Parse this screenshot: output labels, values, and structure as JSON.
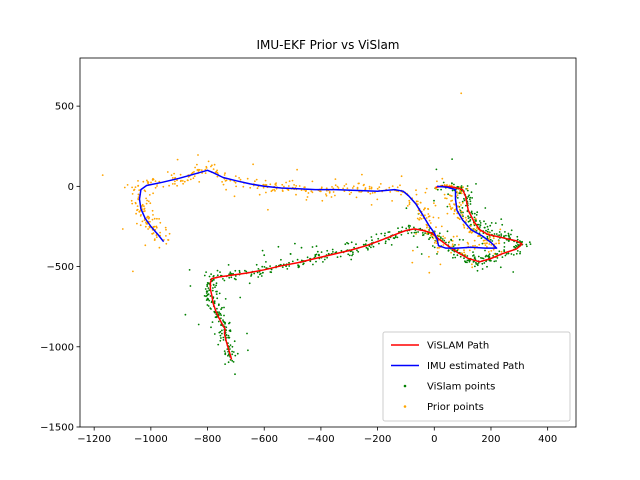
{
  "chart_data": {
    "type": "scatter",
    "title": "IMU-EKF Prior vs ViSlam",
    "xlabel": "",
    "ylabel": "",
    "xlim": [
      -1250,
      500
    ],
    "ylim": [
      -1500,
      800
    ],
    "xticks": [
      -1200,
      -1000,
      -800,
      -600,
      -400,
      -200,
      0,
      200,
      400
    ],
    "yticks": [
      -1500,
      -1000,
      -500,
      0,
      500
    ],
    "grid": false,
    "legend": "bottom-right",
    "series": [
      {
        "name": "ViSLAM Path",
        "kind": "line",
        "color": "#ff0000",
        "points": [
          [
            -715,
            -1080
          ],
          [
            -725,
            -1020
          ],
          [
            -735,
            -960
          ],
          [
            -740,
            -920
          ],
          [
            -738,
            -890
          ],
          [
            -748,
            -860
          ],
          [
            -760,
            -820
          ],
          [
            -770,
            -780
          ],
          [
            -780,
            -730
          ],
          [
            -785,
            -680
          ],
          [
            -790,
            -640
          ],
          [
            -790,
            -600
          ],
          [
            -785,
            -575
          ],
          [
            -760,
            -565
          ],
          [
            -720,
            -555
          ],
          [
            -660,
            -540
          ],
          [
            -600,
            -520
          ],
          [
            -540,
            -495
          ],
          [
            -480,
            -475
          ],
          [
            -420,
            -450
          ],
          [
            -360,
            -425
          ],
          [
            -300,
            -400
          ],
          [
            -240,
            -370
          ],
          [
            -180,
            -330
          ],
          [
            -130,
            -295
          ],
          [
            -100,
            -275
          ],
          [
            -70,
            -265
          ],
          [
            -40,
            -275
          ],
          [
            -10,
            -290
          ],
          [
            10,
            -320
          ],
          [
            40,
            -360
          ],
          [
            80,
            -410
          ],
          [
            120,
            -450
          ],
          [
            160,
            -470
          ],
          [
            200,
            -450
          ],
          [
            240,
            -420
          ],
          [
            290,
            -390
          ],
          [
            310,
            -360
          ],
          [
            290,
            -340
          ],
          [
            240,
            -320
          ],
          [
            190,
            -300
          ],
          [
            160,
            -270
          ],
          [
            140,
            -220
          ],
          [
            120,
            -150
          ],
          [
            110,
            -60
          ],
          [
            100,
            -20
          ],
          [
            70,
            -5
          ],
          [
            30,
            0
          ],
          [
            5,
            -5
          ]
        ]
      },
      {
        "name": "IMU estimated Path",
        "kind": "line",
        "color": "#0000ff",
        "points": [
          [
            -955,
            -345
          ],
          [
            -975,
            -300
          ],
          [
            -1000,
            -250
          ],
          [
            -1020,
            -200
          ],
          [
            -1035,
            -140
          ],
          [
            -1040,
            -80
          ],
          [
            -1035,
            -20
          ],
          [
            -1015,
            5
          ],
          [
            -960,
            25
          ],
          [
            -900,
            50
          ],
          [
            -850,
            75
          ],
          [
            -800,
            100
          ],
          [
            -780,
            85
          ],
          [
            -745,
            55
          ],
          [
            -700,
            35
          ],
          [
            -650,
            15
          ],
          [
            -600,
            0
          ],
          [
            -540,
            -10
          ],
          [
            -480,
            -15
          ],
          [
            -420,
            -20
          ],
          [
            -350,
            -20
          ],
          [
            -280,
            -25
          ],
          [
            -200,
            -30
          ],
          [
            -140,
            -20
          ],
          [
            -110,
            -30
          ],
          [
            -90,
            -60
          ],
          [
            -65,
            -110
          ],
          [
            -40,
            -180
          ],
          [
            -20,
            -240
          ],
          [
            0,
            -290
          ],
          [
            10,
            -330
          ],
          [
            15,
            -370
          ],
          [
            40,
            -385
          ],
          [
            80,
            -385
          ],
          [
            130,
            -380
          ],
          [
            180,
            -385
          ],
          [
            220,
            -385
          ],
          [
            200,
            -350
          ],
          [
            170,
            -310
          ],
          [
            130,
            -270
          ],
          [
            100,
            -210
          ],
          [
            80,
            -150
          ],
          [
            75,
            -80
          ],
          [
            75,
            -20
          ],
          [
            45,
            -5
          ],
          [
            10,
            0
          ]
        ]
      },
      {
        "name": "ViSlam points",
        "kind": "scatter",
        "color": "#008000",
        "count": 750
      },
      {
        "name": "Prior points",
        "kind": "scatter",
        "color": "#ffa500",
        "count": 600,
        "outliers": [
          [
            -1170,
            70
          ],
          [
            95,
            580
          ]
        ]
      }
    ]
  }
}
